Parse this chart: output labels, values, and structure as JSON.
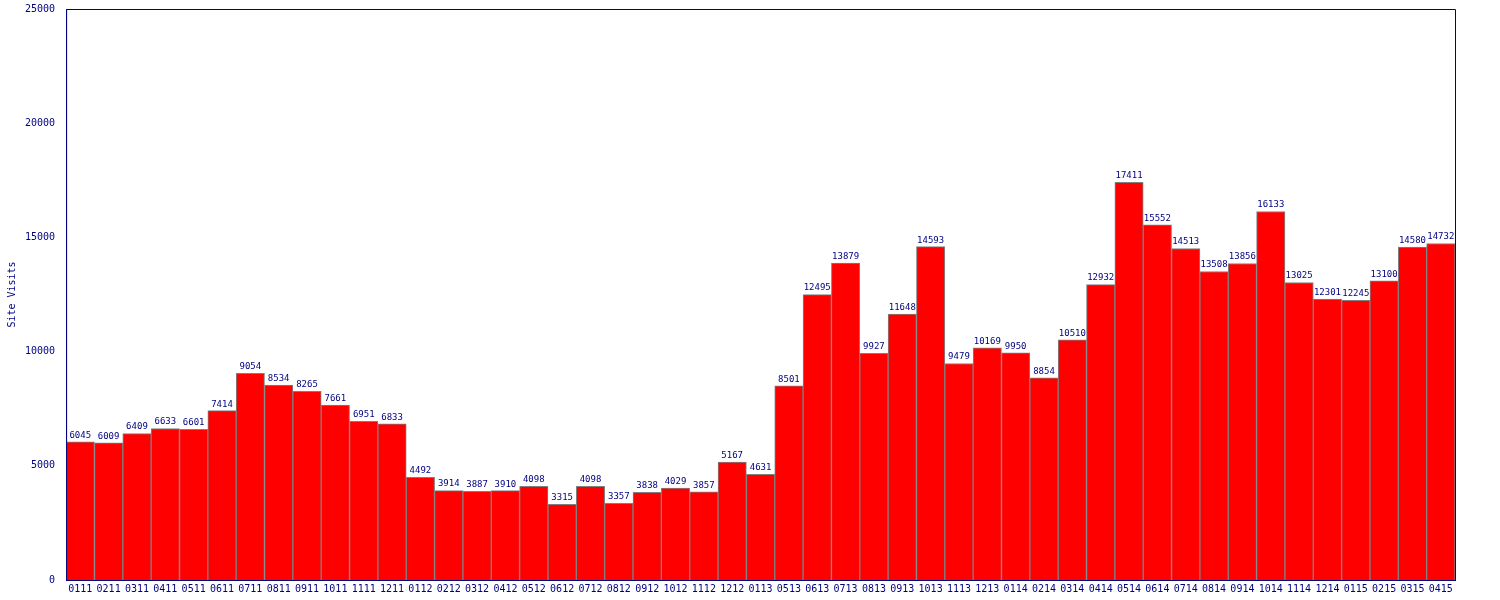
{
  "chart_data": {
    "type": "bar",
    "ylabel": "Site Visits",
    "categories": [
      "0111",
      "0211",
      "0311",
      "0411",
      "0511",
      "0611",
      "0711",
      "0811",
      "0911",
      "1011",
      "1111",
      "1211",
      "0112",
      "0212",
      "0312",
      "0412",
      "0512",
      "0612",
      "0712",
      "0812",
      "0912",
      "1012",
      "1112",
      "1212",
      "0113",
      "0513",
      "0613",
      "0713",
      "0813",
      "0913",
      "1013",
      "1113",
      "1213",
      "0114",
      "0214",
      "0314",
      "0414",
      "0514",
      "0614",
      "0714",
      "0814",
      "0914",
      "1014",
      "1114",
      "1214",
      "0115",
      "0215",
      "0315",
      "0415"
    ],
    "values": [
      6045,
      6009,
      6409,
      6633,
      6601,
      7414,
      9054,
      8534,
      8265,
      7661,
      6951,
      6833,
      4492,
      3914,
      3887,
      3910,
      4098,
      3315,
      4098,
      3357,
      3838,
      4029,
      3857,
      5167,
      4631,
      8501,
      12495,
      13879,
      9927,
      11648,
      14593,
      9479,
      10169,
      9950,
      8854,
      10510,
      12932,
      17411,
      15552,
      14513,
      13508,
      13856,
      16133,
      13025,
      12301,
      12245,
      13100,
      14580,
      14732
    ],
    "color": "#ff0000",
    "ylim": [
      0,
      25000
    ],
    "yticks": [
      0,
      5000,
      10000,
      15000,
      20000,
      25000
    ],
    "grid": false,
    "legend": false,
    "data_labels": true
  }
}
